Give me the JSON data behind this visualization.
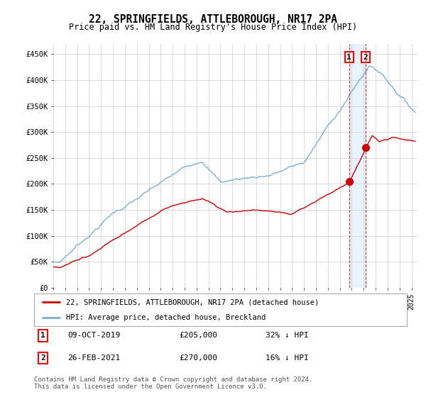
{
  "title": "22, SPRINGFIELDS, ATTLEBOROUGH, NR17 2PA",
  "subtitle": "Price paid vs. HM Land Registry's House Price Index (HPI)",
  "ylabel_ticks": [
    "£0",
    "£50K",
    "£100K",
    "£150K",
    "£200K",
    "£250K",
    "£300K",
    "£350K",
    "£400K",
    "£450K"
  ],
  "ytick_values": [
    0,
    50000,
    100000,
    150000,
    200000,
    250000,
    300000,
    350000,
    400000,
    450000
  ],
  "ylim": [
    0,
    470000
  ],
  "xlim_start": 1995.0,
  "xlim_end": 2025.5,
  "red_line_color": "#cc0000",
  "blue_line_color": "#7bafd4",
  "shade_color": "#ddeeff",
  "dashed_line_color": "#cc0000",
  "marker1_date": 2019.78,
  "marker1_value": 205000,
  "marker2_date": 2021.15,
  "marker2_value": 270000,
  "legend_label_red": "22, SPRINGFIELDS, ATTLEBOROUGH, NR17 2PA (detached house)",
  "legend_label_blue": "HPI: Average price, detached house, Breckland",
  "annotation1_date": "09-OCT-2019",
  "annotation1_price": "£205,000",
  "annotation1_hpi": "32% ↓ HPI",
  "annotation2_date": "26-FEB-2021",
  "annotation2_price": "£270,000",
  "annotation2_hpi": "16% ↓ HPI",
  "footer": "Contains HM Land Registry data © Crown copyright and database right 2024.\nThis data is licensed under the Open Government Licence v3.0.",
  "bg_color": "#ffffff",
  "grid_color": "#cccccc"
}
